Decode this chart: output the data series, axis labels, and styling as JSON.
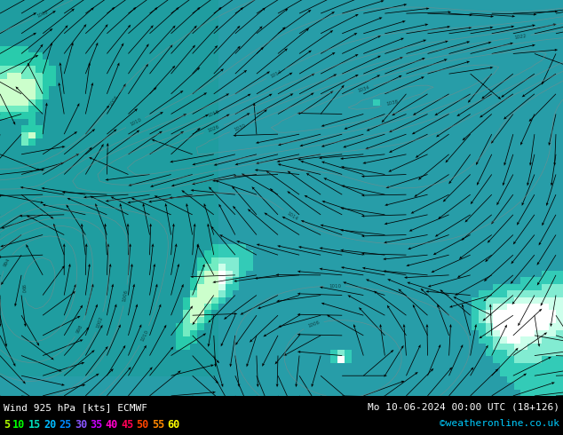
{
  "title_left": "Wind 925 hPa [kts] ECMWF",
  "title_right": "Mo 10-06-2024 00:00 UTC (18+126)",
  "credit": "©weatheronline.co.uk",
  "legend_values": [
    5,
    10,
    15,
    20,
    25,
    30,
    35,
    40,
    45,
    50,
    55,
    60
  ],
  "legend_colors": [
    "#b0ff00",
    "#00ff00",
    "#00ddbb",
    "#00bbff",
    "#0088ff",
    "#8855ff",
    "#cc00ff",
    "#ff00cc",
    "#ff0055",
    "#ff4400",
    "#ff8800",
    "#ffff00"
  ],
  "bg_color": "#000000",
  "map_bg_color": "#ffffff",
  "land_color": "#ccffcc",
  "teal_color": "#00ccaa",
  "cyan_color": "#00aadd",
  "figsize": [
    6.34,
    4.9
  ],
  "dpi": 100,
  "wind_color_bounds": [
    0,
    15,
    20,
    25,
    30,
    100
  ],
  "wind_colors": [
    "#ffffff",
    "#ccffbb",
    "#88ddaa",
    "#00ccaa",
    "#0099cc"
  ]
}
